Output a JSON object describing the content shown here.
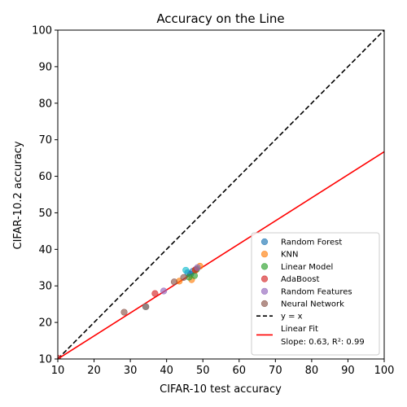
{
  "chart_data": {
    "type": "scatter",
    "title": "Accuracy on the Line",
    "xlabel": "CIFAR-10 test accuracy",
    "ylabel": "CIFAR-10.2 accuracy",
    "xlim": [
      10,
      100
    ],
    "ylim": [
      10,
      100
    ],
    "x_ticks": [
      "10",
      "20",
      "30",
      "40",
      "50",
      "60",
      "70",
      "80",
      "90",
      "100"
    ],
    "y_ticks": [
      "10",
      "20",
      "30",
      "40",
      "50",
      "60",
      "70",
      "80",
      "90",
      "100"
    ],
    "grid": false,
    "legend_position": "bottom-right",
    "series": [
      {
        "name": "Random Forest",
        "color": "#1f77b4",
        "marker": "circle",
        "points": [
          [
            45.8,
            33.6
          ],
          [
            46.6,
            33.2
          ],
          [
            47.2,
            34.0
          ]
        ]
      },
      {
        "name": "KNN",
        "color": "#ff7f0e",
        "marker": "circle",
        "points": [
          [
            43.5,
            31.3
          ],
          [
            46.9,
            31.7
          ],
          [
            48.0,
            34.3
          ],
          [
            49.2,
            35.4
          ]
        ]
      },
      {
        "name": "Linear Model",
        "color": "#2ca02c",
        "marker": "circle",
        "points": [
          [
            46.2,
            32.4
          ],
          [
            47.7,
            32.8
          ],
          [
            48.3,
            34.6
          ]
        ]
      },
      {
        "name": "AdaBoost",
        "color": "#d62728",
        "marker": "circle",
        "points": [
          [
            10.0,
            10.2
          ],
          [
            36.8,
            27.9
          ],
          [
            47.9,
            34.4
          ]
        ]
      },
      {
        "name": "Random Features",
        "color": "#9467bd",
        "marker": "circle",
        "points": [
          [
            39.2,
            28.6
          ],
          [
            48.5,
            35.0
          ]
        ]
      },
      {
        "name": "Neural Network",
        "color": "#8c564b",
        "marker": "circle",
        "points": [
          [
            28.3,
            22.8
          ],
          [
            34.3,
            24.3
          ],
          [
            42.1,
            31.1
          ],
          [
            44.7,
            32.3
          ]
        ]
      },
      {
        "name": "",
        "color": "#17becf",
        "marker": "circle",
        "points": [
          [
            45.3,
            34.3
          ]
        ]
      },
      {
        "name": "",
        "color": "#7f7f7f",
        "marker": "circle",
        "points": [
          [
            34.2,
            24.3
          ]
        ]
      }
    ],
    "reference_line": {
      "name": "y = x",
      "color": "#000000",
      "style": "dashed",
      "slope": 1,
      "intercept": 0
    },
    "fit_line": {
      "name": "Linear Fit",
      "color": "#ff0000",
      "style": "solid",
      "slope": 0.63,
      "intercept": 3.7,
      "annotation": "Slope: 0.63, R²: 0.99"
    }
  }
}
